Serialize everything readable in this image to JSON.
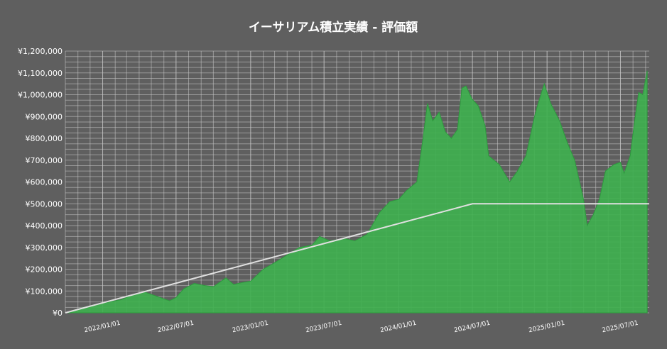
{
  "chart_data": {
    "type": "area",
    "title": "イーサリアム積立実績 - 評価額",
    "xlabel": "",
    "ylabel": "",
    "ylim": [
      0,
      1200000
    ],
    "yticks": [
      0,
      100000,
      200000,
      300000,
      400000,
      500000,
      600000,
      700000,
      800000,
      900000,
      1000000,
      1100000,
      1200000
    ],
    "ytick_labels": [
      "¥0",
      "¥100,000",
      "¥200,000",
      "¥300,000",
      "¥400,000",
      "¥500,000",
      "¥600,000",
      "¥700,000",
      "¥800,000",
      "¥900,000",
      "¥1,000,000",
      "¥1,100,000",
      "¥1,200,000"
    ],
    "xlim": [
      "2021-10-01",
      "2025-09-10"
    ],
    "xticks": [
      "2022-01-01",
      "2022-07-01",
      "2023-01-01",
      "2023-07-01",
      "2024-01-01",
      "2024-07-01",
      "2025-01-01",
      "2025-07-01"
    ],
    "xtick_labels": [
      "2022/01/01",
      "2022/07/01",
      "2023/01/01",
      "2023/07/01",
      "2024/01/01",
      "2024/07/01",
      "2025/01/01",
      "2025/07/01"
    ],
    "grid": true,
    "colors": {
      "background": "#5f5f5f",
      "area": "#3fb04f",
      "area_edge": "#2e9a3e",
      "invested_line": "#e0e0e0",
      "grid": "#c8c8c8",
      "text": "#ffffff"
    },
    "series": [
      {
        "kind": "area",
        "x": [
          "2021-10-01",
          "2021-11-15",
          "2022-01-01",
          "2022-02-15",
          "2022-03-20",
          "2022-04-15",
          "2022-05-15",
          "2022-06-15",
          "2022-07-01",
          "2022-07-20",
          "2022-08-15",
          "2022-09-10",
          "2022-10-01",
          "2022-11-01",
          "2022-11-20",
          "2022-12-15",
          "2023-01-01",
          "2023-02-01",
          "2023-03-01",
          "2023-04-01",
          "2023-05-01",
          "2023-06-01",
          "2023-06-20",
          "2023-07-15",
          "2023-08-20",
          "2023-09-15",
          "2023-10-15",
          "2023-11-15",
          "2023-12-10",
          "2024-01-01",
          "2024-01-20",
          "2024-02-15",
          "2024-03-01",
          "2024-03-12",
          "2024-03-25",
          "2024-04-10",
          "2024-04-25",
          "2024-05-10",
          "2024-05-25",
          "2024-06-05",
          "2024-06-15",
          "2024-06-30",
          "2024-07-15",
          "2024-08-01",
          "2024-08-10",
          "2024-09-05",
          "2024-10-01",
          "2024-10-20",
          "2024-11-10",
          "2024-12-01",
          "2024-12-10",
          "2024-12-25",
          "2025-01-10",
          "2025-02-01",
          "2025-02-20",
          "2025-03-10",
          "2025-04-01",
          "2025-04-10",
          "2025-04-25",
          "2025-05-10",
          "2025-05-25",
          "2025-06-15",
          "2025-07-01",
          "2025-07-10",
          "2025-07-25",
          "2025-08-05",
          "2025-08-15",
          "2025-08-25",
          "2025-09-05"
        ],
        "y": [
          0,
          25000,
          45000,
          60000,
          85000,
          95000,
          75000,
          55000,
          70000,
          110000,
          135000,
          125000,
          120000,
          160000,
          130000,
          140000,
          145000,
          200000,
          230000,
          265000,
          300000,
          310000,
          350000,
          330000,
          340000,
          330000,
          360000,
          460000,
          510000,
          520000,
          560000,
          600000,
          800000,
          960000,
          880000,
          920000,
          830000,
          800000,
          840000,
          1030000,
          1040000,
          980000,
          950000,
          860000,
          720000,
          680000,
          600000,
          650000,
          720000,
          900000,
          960000,
          1050000,
          960000,
          880000,
          780000,
          700000,
          520000,
          400000,
          450000,
          520000,
          650000,
          680000,
          690000,
          640000,
          720000,
          880000,
          1010000,
          1000000,
          1110000
        ]
      },
      {
        "kind": "line",
        "x": [
          "2021-10-01",
          "2024-07-01",
          "2025-09-10"
        ],
        "y": [
          0,
          500000,
          500000
        ]
      }
    ]
  }
}
